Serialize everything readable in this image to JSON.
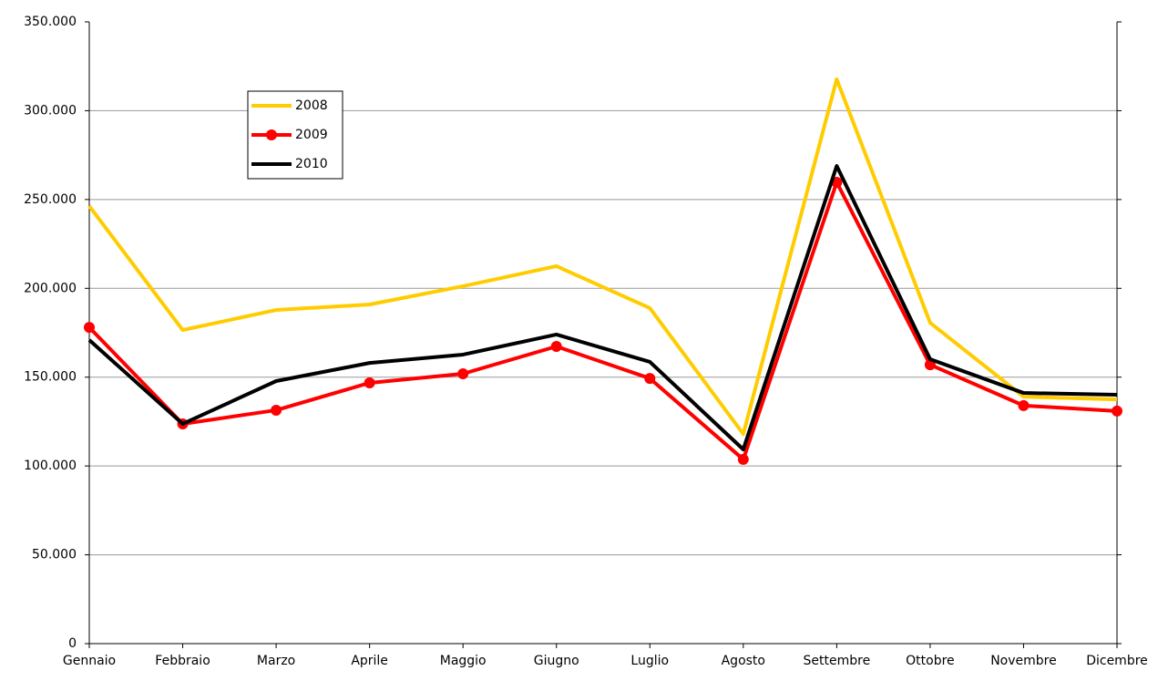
{
  "chart_data": {
    "type": "line",
    "categories": [
      "Gennaio",
      "Febbraio",
      "Marzo",
      "Aprile",
      "Maggio",
      "Giugno",
      "Luglio",
      "Agosto",
      "Settembre",
      "Ottobre",
      "Novembre",
      "Dicembre"
    ],
    "series": [
      {
        "name": "2008",
        "color": "#ffcc00",
        "marker": false,
        "values": [
          246300,
          176500,
          187800,
          190900,
          201200,
          212500,
          188900,
          118000,
          317700,
          180600,
          139000,
          137500
        ]
      },
      {
        "name": "2009",
        "color": "#ff0000",
        "marker": true,
        "values": [
          178000,
          123700,
          131400,
          146800,
          151900,
          167300,
          149300,
          103700,
          259700,
          157000,
          134000,
          130900
        ]
      },
      {
        "name": "2010",
        "color": "#000000",
        "marker": false,
        "values": [
          170900,
          123700,
          147800,
          158000,
          162700,
          174000,
          158600,
          109300,
          268900,
          160100,
          141100,
          140100
        ]
      }
    ],
    "ylim": [
      0,
      350000
    ],
    "yticks": [
      0,
      {
        "value": 50000,
        "label": "50.000"
      },
      {
        "value": 100000,
        "label": "100.000"
      },
      {
        "value": 150000,
        "label": "150.000"
      },
      {
        "value": 200000,
        "label": "200.000"
      },
      {
        "value": 250000,
        "label": "250.000"
      },
      {
        "value": 300000,
        "label": "300.000"
      },
      {
        "value": 350000,
        "label": "350.000"
      }
    ],
    "grid": true,
    "legend": "upper-left"
  }
}
